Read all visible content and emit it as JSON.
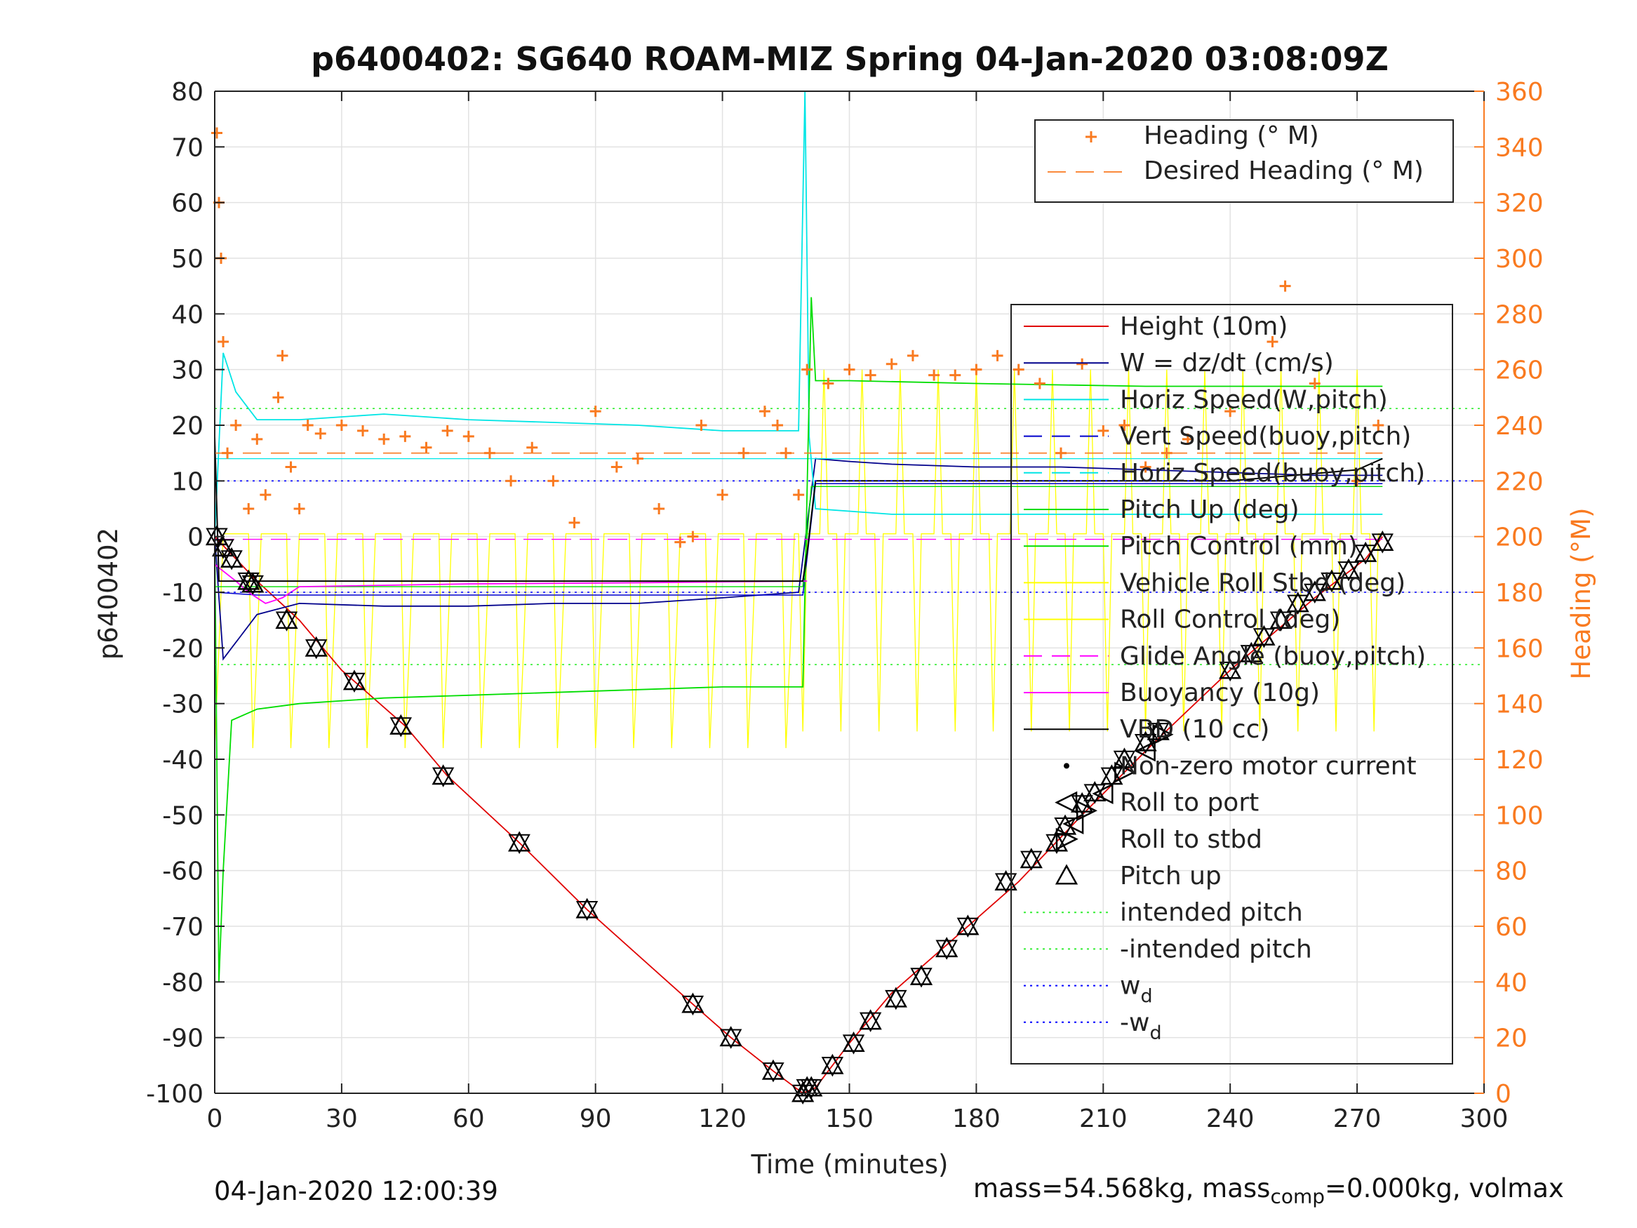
{
  "chart_data": {
    "type": "line",
    "title": "p6400402: SG640 ROAM-MIZ Spring 04-Jan-2020 03:08:09Z",
    "xlabel": "Time (minutes)",
    "ylabel_left": "p6400402",
    "ylabel_right": "Heading (°M)",
    "xlim": [
      0,
      300
    ],
    "ylim_left": [
      -100,
      80
    ],
    "ylim_right": [
      0,
      360
    ],
    "xticks": [
      0,
      30,
      60,
      90,
      120,
      150,
      180,
      210,
      240,
      270,
      300
    ],
    "yticks_left": [
      80,
      70,
      60,
      50,
      40,
      30,
      20,
      10,
      0,
      -10,
      -20,
      -30,
      -40,
      -50,
      -60,
      -70,
      -80,
      -90,
      -100
    ],
    "yticks_right": [
      360,
      340,
      320,
      300,
      280,
      260,
      240,
      220,
      200,
      180,
      160,
      140,
      120,
      100,
      80,
      60,
      40,
      20,
      0
    ],
    "grid": true,
    "colors": {
      "height": "#e00000",
      "w": "#00008b",
      "horiz_speed": "#00e5e5",
      "vert_speed": "#0000cc",
      "pitch": "#00dd00",
      "roll": "#ffff00",
      "glide": "#ff00ff",
      "buoyancy": "#ff00ff",
      "vbd": "#000000",
      "heading": "#f97a20",
      "intended": "#33ee33",
      "wd": "#0000ff"
    },
    "legend_heading": {
      "placement": "top-right",
      "entries": [
        "Heading (° M)",
        "Desired Heading (° M)"
      ]
    },
    "legend_main": {
      "placement": "right",
      "entries": [
        "Height (10m)",
        "W = dz/dt (cm/s)",
        "Horiz Speed(W,pitch)",
        "Vert Speed(buoy,pitch)",
        "Horiz Speed(buoy,pitch)",
        "Pitch Up (deg)",
        "Pitch Control (mm)",
        "Vehicle Roll Stbd (deg)",
        "Roll Control (deg)",
        "Glide Angle (buoy,pitch)",
        "Buoyancy (10g)",
        "VBD (10 cc)",
        "Non-zero motor current",
        "Roll to port",
        "Roll to stbd",
        "Pitch up",
        "intended pitch",
        "-intended pitch",
        "w",
        "-w"
      ],
      "subscript": "d"
    },
    "series": [
      {
        "name": "Height (10m)",
        "x": [
          0,
          5,
          10,
          20,
          30,
          45,
          55,
          72,
          88,
          113,
          122,
          132,
          139,
          142,
          150,
          160,
          175,
          190,
          205,
          222,
          240,
          260,
          272,
          276
        ],
        "y": [
          0,
          -4,
          -8,
          -15,
          -24,
          -34,
          -43,
          -55,
          -67,
          -84,
          -90,
          -96,
          -100,
          -99,
          -91,
          -82,
          -72,
          -62,
          -50,
          -37,
          -24,
          -11,
          -4,
          0
        ]
      },
      {
        "name": "W = dz/dt (cm/s)",
        "x": [
          0,
          2,
          4,
          6,
          10,
          20,
          40,
          60,
          80,
          100,
          120,
          138,
          140,
          142,
          150,
          160,
          180,
          200,
          220,
          240,
          260,
          276
        ],
        "y": [
          0,
          -22,
          -20,
          -18,
          -14,
          -12,
          -12.5,
          -12.5,
          -12,
          -12,
          -11,
          -10,
          2,
          14,
          13.5,
          13,
          12.5,
          12.5,
          12,
          11.5,
          11,
          11
        ]
      },
      {
        "name": "Horiz Speed(W,pitch)",
        "x": [
          0,
          2,
          5,
          10,
          20,
          40,
          60,
          80,
          100,
          120,
          138,
          139.5,
          140.5,
          142,
          160,
          200,
          240,
          276
        ],
        "y": [
          0,
          33,
          26,
          21,
          21,
          22,
          21,
          20.5,
          20,
          19,
          19,
          80,
          18,
          5,
          4,
          4,
          4,
          4
        ]
      },
      {
        "name": "Vert Speed(buoy,pitch)",
        "x": [
          0,
          10,
          60,
          139,
          142,
          276
        ],
        "y": [
          -10,
          -10.5,
          -10.5,
          -10.5,
          9.5,
          9.5
        ]
      },
      {
        "name": "Horiz Speed(buoy,pitch)",
        "x": [
          0,
          10,
          60,
          139,
          142,
          276
        ],
        "y": [
          14,
          14,
          14,
          14,
          14,
          14
        ]
      },
      {
        "name": "Pitch Up (deg)",
        "x": [
          0,
          1,
          2,
          4,
          10,
          20,
          40,
          60,
          80,
          100,
          120,
          139,
          141,
          142,
          150,
          180,
          220,
          260,
          276
        ],
        "y": [
          0,
          -80,
          -60,
          -33,
          -31,
          -30,
          -29,
          -28.5,
          -28,
          -27.5,
          -27,
          -27,
          43,
          28,
          28,
          27.5,
          27,
          27,
          27
        ]
      },
      {
        "name": "Pitch Control (mm)",
        "x": [
          0,
          10,
          139,
          141,
          276
        ],
        "y": [
          -9,
          -9,
          -9,
          9,
          9
        ]
      },
      {
        "name": "Roll Control (deg)",
        "x": [
          0,
          139,
          142,
          276
        ],
        "y": [
          0,
          0,
          0,
          0
        ]
      },
      {
        "name": "Glide Angle (buoy,pitch)",
        "x": [
          0,
          139,
          140,
          276
        ],
        "y": [
          -0.5,
          -0.5,
          -0.5,
          -0.5
        ]
      },
      {
        "name": "Buoyancy (10g)",
        "x": [
          0,
          5,
          8,
          12,
          16,
          20,
          60,
          100,
          139,
          140
        ],
        "y": [
          -5,
          -8,
          -10,
          -12,
          -11,
          -9,
          -8.5,
          -8.3,
          -8,
          -8
        ]
      },
      {
        "name": "VBD (10 cc)",
        "x": [
          0,
          1,
          4,
          30,
          60,
          100,
          139,
          140,
          142,
          240,
          270,
          276
        ],
        "y": [
          18,
          -8,
          -8,
          -8,
          -8,
          -8,
          -8,
          -3,
          10,
          10,
          12,
          14
        ]
      },
      {
        "name": "Heading (° M)",
        "x": [
          0.5,
          1,
          1.5,
          2,
          3,
          5,
          8,
          10,
          12,
          15,
          16,
          18,
          20,
          22,
          25,
          30,
          35,
          40,
          45,
          50,
          55,
          60,
          65,
          70,
          75,
          80,
          85,
          90,
          95,
          100,
          105,
          110,
          113,
          115,
          120,
          125,
          130,
          133,
          135,
          138,
          140,
          145,
          150,
          155,
          160,
          165,
          170,
          175,
          180,
          185,
          190,
          195,
          200,
          205,
          210,
          215,
          220,
          225,
          230,
          240,
          250,
          253,
          260,
          270,
          275
        ],
        "y": [
          345,
          320,
          300,
          270,
          230,
          240,
          210,
          235,
          215,
          250,
          265,
          225,
          210,
          240,
          237,
          240,
          238,
          235,
          236,
          232,
          238,
          236,
          230,
          220,
          232,
          220,
          205,
          245,
          225,
          228,
          210,
          198,
          200,
          240,
          215,
          230,
          245,
          240,
          230,
          215,
          260,
          255,
          260,
          258,
          262,
          265,
          258,
          258,
          260,
          265,
          260,
          255,
          230,
          262,
          238,
          240,
          225,
          230,
          235,
          245,
          270,
          290,
          255,
          220,
          240
        ]
      },
      {
        "name": "Desired Heading (° M)",
        "x": [
          0,
          139,
          142,
          276
        ],
        "y": [
          230,
          230,
          230,
          230
        ]
      },
      {
        "name": "intended pitch",
        "x": [
          0,
          300
        ],
        "y": [
          23,
          23
        ]
      },
      {
        "name": "-intended pitch",
        "x": [
          0,
          300
        ],
        "y": [
          -23,
          -23
        ]
      },
      {
        "name": "w",
        "x": [
          0,
          300
        ],
        "y": [
          10,
          10
        ]
      },
      {
        "name": "-w",
        "x": [
          0,
          300
        ],
        "y": [
          -10,
          -10
        ]
      }
    ],
    "pitch_up_markers": {
      "x": [
        0.5,
        2,
        4,
        8,
        9,
        17,
        24,
        33,
        44,
        54,
        72,
        88,
        113,
        122,
        132,
        139,
        140,
        141,
        146,
        151,
        155,
        161,
        167,
        173,
        178,
        187,
        193,
        199,
        201,
        205,
        208,
        212,
        215,
        220,
        223,
        240,
        245,
        248,
        252,
        256,
        260,
        264,
        268,
        272,
        276
      ],
      "y": [
        0,
        -2,
        -4,
        -8,
        -8.5,
        -15,
        -20,
        -26,
        -34,
        -43,
        -55,
        -67,
        -84,
        -90,
        -96,
        -100,
        -99,
        -99,
        -95,
        -91,
        -87,
        -83,
        -79,
        -74,
        -70,
        -62,
        -58,
        -55,
        -52,
        -48,
        -46,
        -43,
        -40,
        -37,
        -35,
        -24,
        -21,
        -18,
        -15,
        -12,
        -10,
        -8,
        -6,
        -3,
        -1
      ]
    },
    "roll_markers_x": [
      203,
      206,
      210,
      215,
      220,
      224
    ],
    "footer_left": "04-Jan-2020 12:00:39",
    "footer_right_prefix": "mass=54.568kg, mass",
    "footer_right_sub": "comp",
    "footer_right_suffix": "=0.000kg, volmax"
  }
}
